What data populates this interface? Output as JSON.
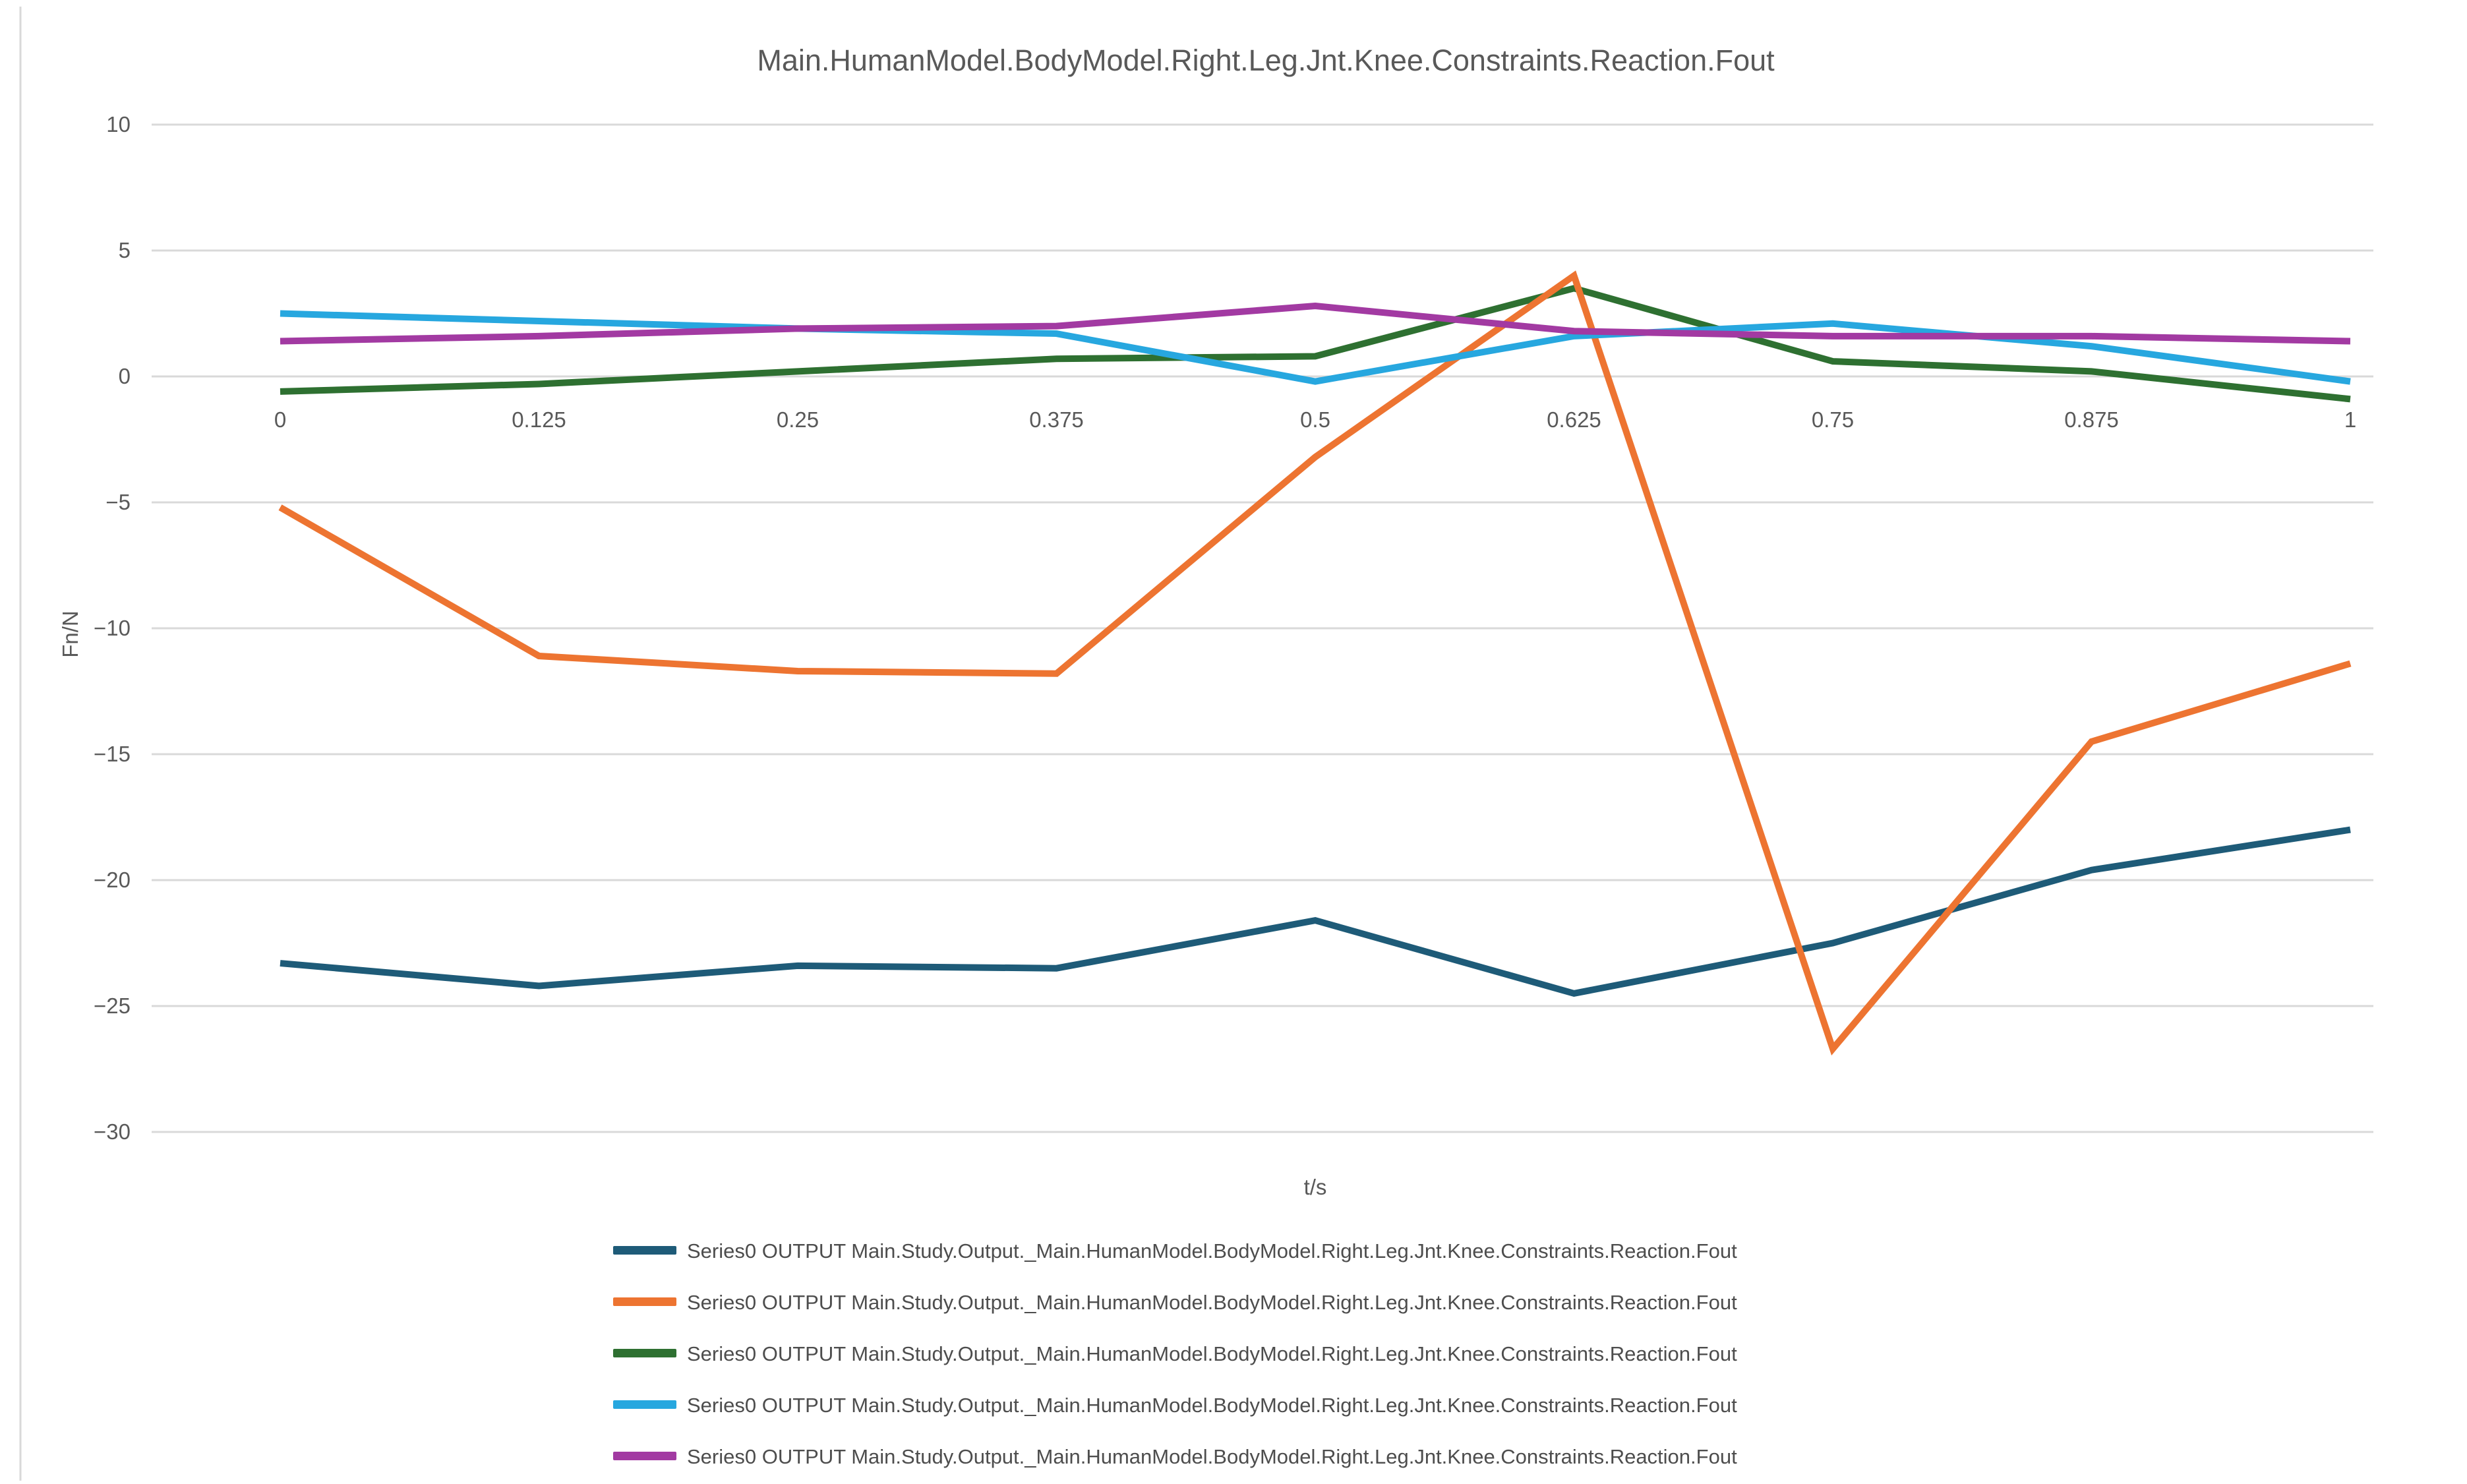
{
  "page": {
    "background": "#ffffff",
    "left_border_color": "#d9d9d9"
  },
  "chart_data": {
    "type": "line",
    "title": "Main.HumanModel.BodyModel.Right.Leg.Jnt.Knee.Constraints.Reaction.Fout",
    "xlabel": "t/s",
    "ylabel": "Fn/N",
    "grid": true,
    "legend_position": "bottom",
    "xlim": [
      0,
      1
    ],
    "ylim": [
      -30,
      10
    ],
    "x": [
      0,
      0.125,
      0.25,
      0.375,
      0.5,
      0.625,
      0.75,
      0.875,
      1
    ],
    "x_tick_labels": [
      "0",
      "0.125",
      "0.25",
      "0.375",
      "0.5",
      "0.625",
      "0.75",
      "0.875",
      "1"
    ],
    "y_ticks": [
      10,
      5,
      0,
      -5,
      -10,
      -15,
      -20,
      -25,
      -30
    ],
    "grid_color": "#d9d9d9",
    "text_color": "#595959",
    "series": [
      {
        "name": "Series0 OUTPUT Main.Study.Output._Main.HumanModel.BodyModel.Right.Leg.Jnt.Knee.Constraints.Reaction.Fout",
        "color": "#1E5B78",
        "values": [
          -23.3,
          -24.2,
          -23.4,
          -23.5,
          -21.6,
          -24.5,
          -22.5,
          -19.6,
          -18.0
        ]
      },
      {
        "name": "Series0 OUTPUT Main.Study.Output._Main.HumanModel.BodyModel.Right.Leg.Jnt.Knee.Constraints.Reaction.Fout",
        "color": "#ED7431",
        "values": [
          -5.2,
          -11.1,
          -11.7,
          -11.8,
          -3.2,
          4.0,
          -26.7,
          -14.5,
          -11.4
        ]
      },
      {
        "name": "Series0 OUTPUT Main.Study.Output._Main.HumanModel.BodyModel.Right.Leg.Jnt.Knee.Constraints.Reaction.Fout",
        "color": "#2E7031",
        "values": [
          -0.6,
          -0.3,
          0.2,
          0.7,
          0.8,
          3.5,
          0.6,
          0.2,
          -0.9
        ]
      },
      {
        "name": "Series0 OUTPUT Main.Study.Output._Main.HumanModel.BodyModel.Right.Leg.Jnt.Knee.Constraints.Reaction.Fout",
        "color": "#27A7DF",
        "values": [
          2.5,
          2.2,
          1.9,
          1.7,
          -0.2,
          1.6,
          2.1,
          1.2,
          -0.2
        ]
      },
      {
        "name": "Series0 OUTPUT Main.Study.Output._Main.HumanModel.BodyModel.Right.Leg.Jnt.Knee.Constraints.Reaction.Fout",
        "color": "#A23AA2",
        "values": [
          1.4,
          1.6,
          1.9,
          2.0,
          2.8,
          1.8,
          1.6,
          1.6,
          1.4
        ]
      }
    ]
  }
}
